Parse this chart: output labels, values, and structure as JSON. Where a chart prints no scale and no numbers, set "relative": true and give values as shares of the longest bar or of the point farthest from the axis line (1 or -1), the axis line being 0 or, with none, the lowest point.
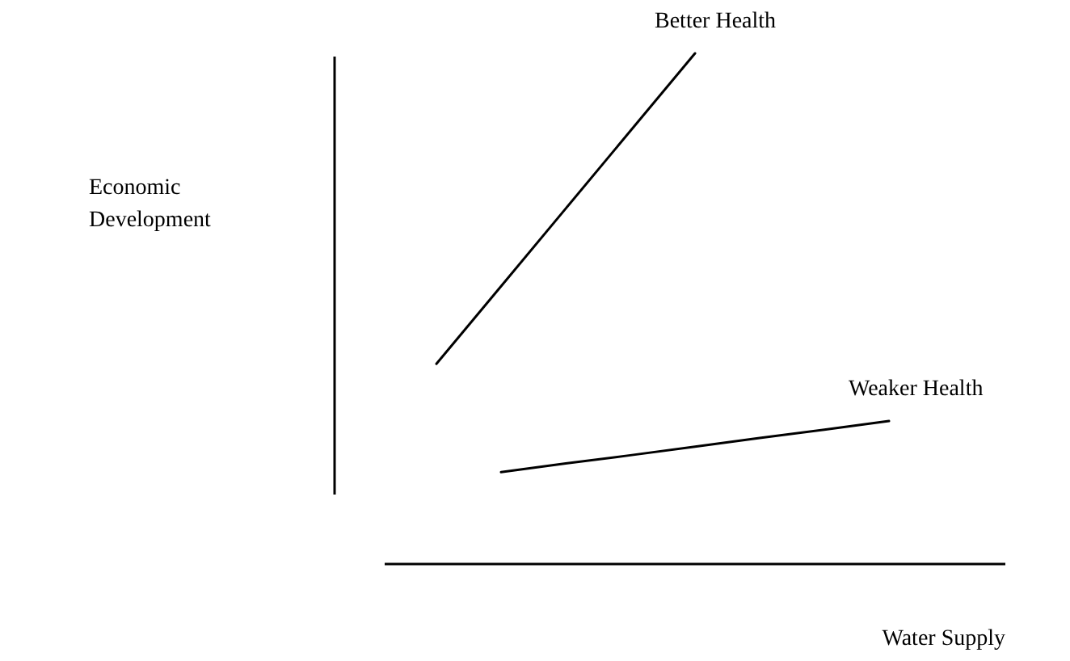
{
  "chart_data": {
    "type": "line",
    "relative": true,
    "xlabel": "Water Supply",
    "annotations": [
      "Economic Development"
    ],
    "categories": [
      null,
      null,
      null,
      null,
      null,
      null,
      null,
      null
    ],
    "series": [
      {
        "name": "Better Health",
        "color": "#000000",
        "values": [
          0.392,
          0.544,
          0.696,
          0.848,
          1,
          null,
          null,
          null
        ]
      },
      {
        "name": "Weaker Health",
        "color": "#000000",
        "values": [
          null,
          0.18,
          0.197,
          0.213,
          0.23,
          0.247,
          0.263,
          0.28
        ]
      }
    ]
  }
}
